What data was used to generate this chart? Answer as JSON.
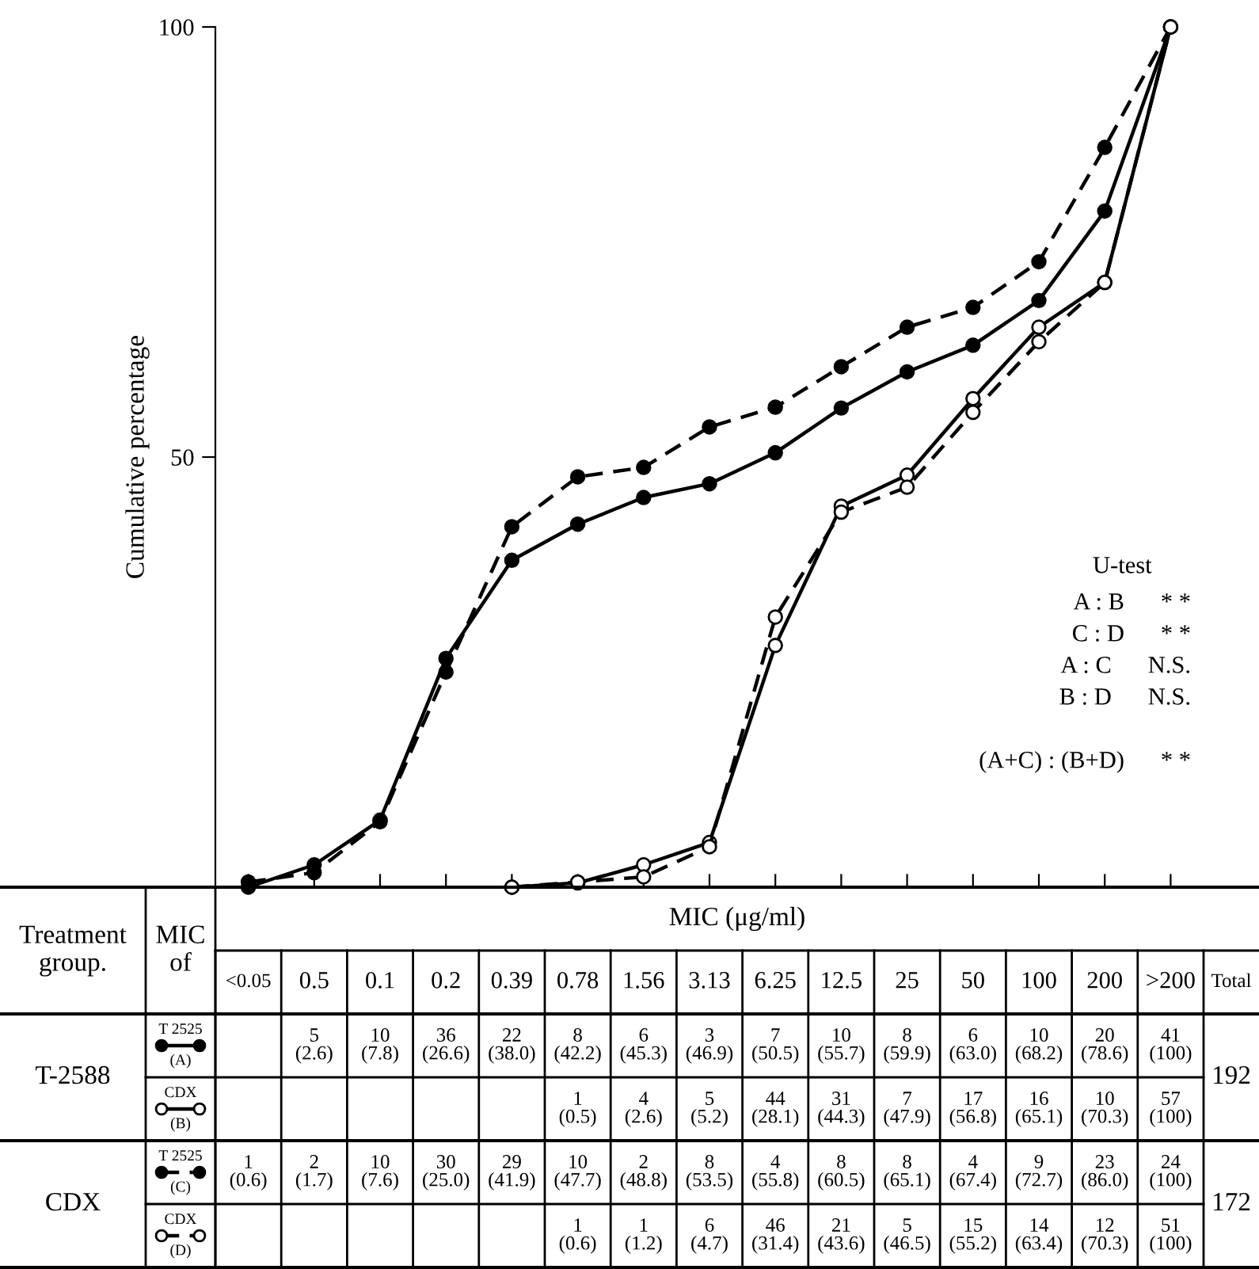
{
  "chart_data": {
    "type": "line",
    "xlabel": "MIC (μg/ml)",
    "ylabel": "Cumulative percentage",
    "categories": [
      "<0.05",
      "0.5",
      "0.1",
      "0.2",
      "0.39",
      "0.78",
      "1.56",
      "3.13",
      "6.25",
      "12.5",
      "25",
      "50",
      "100",
      "200",
      ">200"
    ],
    "ylim": [
      0,
      100
    ],
    "yticks": [
      50,
      100
    ],
    "grid": false,
    "series": [
      {
        "name": "T 2525\n(A)",
        "color": "#000000",
        "line_style": "solid",
        "marker": "circle",
        "values": [
          0,
          2.6,
          7.8,
          26.6,
          38.0,
          42.2,
          45.3,
          46.9,
          50.5,
          55.7,
          59.9,
          63.0,
          68.2,
          78.6,
          100
        ],
        "value_labels": [
          null,
          "5\n(2.6)",
          "10\n(7.8)",
          "36\n(26.6)",
          "22\n(38.0)",
          "8\n(42.2)",
          "6\n(45.3)",
          "3\n(46.9)",
          "7\n(50.5)",
          "10\n(55.7)",
          "8\n(59.9)",
          "6\n(63.0)",
          "10\n(68.2)",
          "20\n(78.6)",
          "41\n(100)"
        ]
      },
      {
        "name": "CDX\n(B)",
        "color": "#000000",
        "line_style": "solid",
        "marker": "circle-open",
        "values": [
          null,
          null,
          null,
          null,
          0,
          0.5,
          2.6,
          5.2,
          28.1,
          44.3,
          47.9,
          56.8,
          65.1,
          70.3,
          100
        ],
        "value_labels": [
          null,
          null,
          null,
          null,
          null,
          "1\n(0.5)",
          "4\n(2.6)",
          "5\n(5.2)",
          "44\n(28.1)",
          "31\n(44.3)",
          "7\n(47.9)",
          "17\n(56.8)",
          "16\n(65.1)",
          "10\n(70.3)",
          "57\n(100)"
        ]
      },
      {
        "name": "T 2525\n(C)",
        "color": "#000000",
        "line_style": "dashed",
        "marker": "circle",
        "values": [
          0.6,
          1.7,
          7.6,
          25.0,
          41.9,
          47.7,
          48.8,
          53.5,
          55.8,
          60.5,
          65.1,
          67.4,
          72.7,
          86.0,
          100
        ],
        "value_labels": [
          "1\n(0.6)",
          "2\n(1.7)",
          "10\n(7.6)",
          "30\n(25.0)",
          "29\n(41.9)",
          "10\n(47.7)",
          "2\n(48.8)",
          "8\n(53.5)",
          "4\n(55.8)",
          "8\n(60.5)",
          "8\n(65.1)",
          "4\n(67.4)",
          "9\n(72.7)",
          "23\n(86.0)",
          "24\n(100)"
        ]
      },
      {
        "name": "CDX\n(D)",
        "color": "#000000",
        "line_style": "dashed",
        "marker": "circle-open",
        "values": [
          null,
          null,
          null,
          null,
          0,
          0.6,
          1.2,
          4.7,
          31.4,
          43.6,
          46.5,
          55.2,
          63.4,
          70.3,
          100
        ],
        "value_labels": [
          null,
          null,
          null,
          null,
          null,
          "1\n(0.6)",
          "1\n(1.2)",
          "6\n(4.7)",
          "46\n(31.4)",
          "21\n(43.6)",
          "5\n(46.5)",
          "15\n(55.2)",
          "14\n(63.4)",
          "12\n(70.3)",
          "51\n(100)"
        ]
      }
    ],
    "annotations": [
      "Treatment\ngroup.",
      "MIC\nof",
      "Total",
      "T-2588",
      "CDX",
      "192",
      "172",
      "U-test",
      "A : B      * *",
      "C : D      * *",
      "A : C      N.S.",
      "B : D      N.S.",
      "(A+C) : (B+D)      * *"
    ]
  }
}
